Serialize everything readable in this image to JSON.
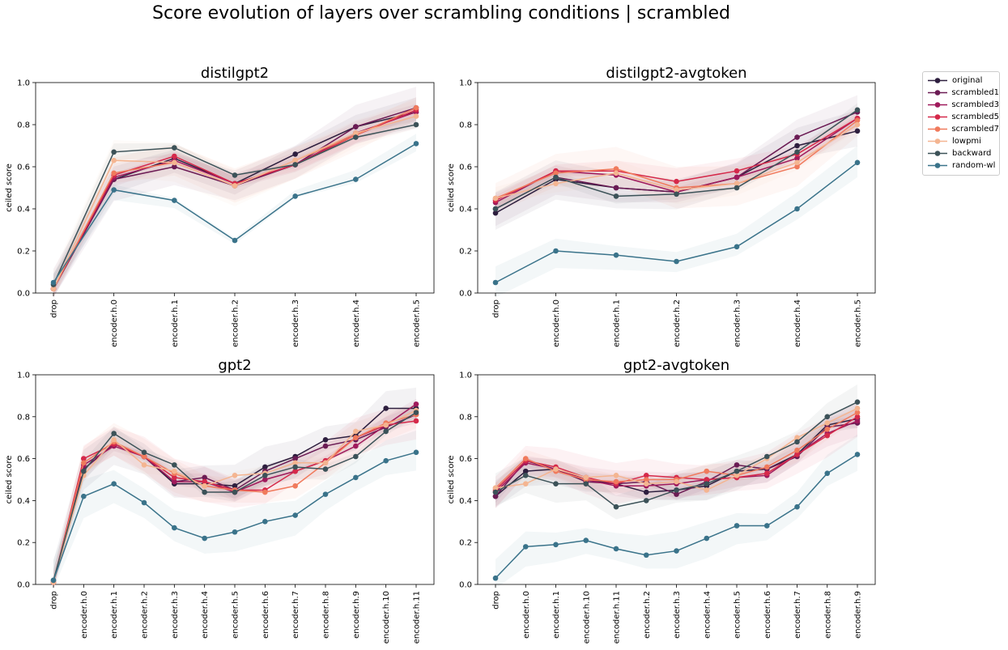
{
  "figure": {
    "title": "Score evolution of layers over scrambling conditions | scrambled"
  },
  "legend": {
    "entries": [
      {
        "name": "original",
        "color": "#2d1e3e"
      },
      {
        "name": "scrambled1",
        "color": "#6b1b54"
      },
      {
        "name": "scrambled3",
        "color": "#a01a5c"
      },
      {
        "name": "scrambled5",
        "color": "#d5294a"
      },
      {
        "name": "scrambled7",
        "color": "#f07a5c"
      },
      {
        "name": "lowpmi",
        "color": "#f4b591"
      },
      {
        "name": "backward",
        "color": "#3c5258"
      },
      {
        "name": "random-wl",
        "color": "#3a738a"
      }
    ]
  },
  "chart_data": [
    {
      "type": "line",
      "title": "distilgpt2",
      "ylabel": "ceiled score",
      "ylim": [
        0,
        1
      ],
      "yticks": [
        "0.0",
        "0.2",
        "0.4",
        "0.6",
        "0.8",
        "1.0"
      ],
      "categories": [
        "drop",
        "encoder.h.0",
        "encoder.h.1",
        "encoder.h.2",
        "encoder.h.3",
        "encoder.h.4",
        "encoder.h.5"
      ],
      "series": [
        {
          "name": "original",
          "values": [
            0.02,
            0.54,
            0.64,
            0.52,
            0.66,
            0.79,
            0.86
          ]
        },
        {
          "name": "scrambled1",
          "values": [
            0.02,
            0.54,
            0.6,
            0.51,
            0.61,
            0.79,
            0.88
          ]
        },
        {
          "name": "scrambled3",
          "values": [
            0.02,
            0.55,
            0.63,
            0.52,
            0.61,
            0.76,
            0.86
          ]
        },
        {
          "name": "scrambled5",
          "values": [
            0.02,
            0.56,
            0.65,
            0.52,
            0.61,
            0.75,
            0.87
          ]
        },
        {
          "name": "scrambled7",
          "values": [
            0.02,
            0.57,
            0.62,
            0.51,
            0.63,
            0.75,
            0.88
          ]
        },
        {
          "name": "lowpmi",
          "values": [
            0.02,
            0.63,
            0.62,
            0.51,
            0.63,
            0.76,
            0.84
          ]
        },
        {
          "name": "backward",
          "values": [
            0.04,
            0.67,
            0.69,
            0.56,
            0.61,
            0.74,
            0.8
          ]
        },
        {
          "name": "random-wl",
          "values": [
            0.05,
            0.49,
            0.44,
            0.25,
            0.46,
            0.54,
            0.71
          ]
        }
      ]
    },
    {
      "type": "line",
      "title": "distilgpt2-avgtoken",
      "ylabel": "ceiled score",
      "ylim": [
        0,
        1
      ],
      "yticks": [
        "0.0",
        "0.2",
        "0.4",
        "0.6",
        "0.8",
        "1.0"
      ],
      "categories": [
        "drop",
        "encoder.h.0",
        "encoder.h.1",
        "encoder.h.2",
        "encoder.h.3",
        "encoder.h.4",
        "encoder.h.5"
      ],
      "series": [
        {
          "name": "original",
          "values": [
            0.38,
            0.54,
            0.5,
            0.48,
            0.55,
            0.7,
            0.77
          ]
        },
        {
          "name": "scrambled1",
          "values": [
            0.4,
            0.55,
            0.5,
            0.48,
            0.55,
            0.74,
            0.86
          ]
        },
        {
          "name": "scrambled3",
          "values": [
            0.43,
            0.58,
            0.56,
            0.48,
            0.55,
            0.64,
            0.83
          ]
        },
        {
          "name": "scrambled5",
          "values": [
            0.44,
            0.58,
            0.58,
            0.53,
            0.58,
            0.66,
            0.83
          ]
        },
        {
          "name": "scrambled7",
          "values": [
            0.45,
            0.57,
            0.59,
            0.5,
            0.52,
            0.6,
            0.82
          ]
        },
        {
          "name": "lowpmi",
          "values": [
            0.45,
            0.52,
            0.57,
            0.49,
            0.52,
            0.62,
            0.8
          ]
        },
        {
          "name": "backward",
          "values": [
            0.4,
            0.55,
            0.46,
            0.47,
            0.5,
            0.67,
            0.87
          ]
        },
        {
          "name": "random-wl",
          "values": [
            0.05,
            0.2,
            0.18,
            0.15,
            0.22,
            0.4,
            0.62
          ]
        }
      ]
    },
    {
      "type": "line",
      "title": "gpt2",
      "ylabel": "ceiled score",
      "ylim": [
        0,
        1
      ],
      "yticks": [
        "0.0",
        "0.2",
        "0.4",
        "0.6",
        "0.8",
        "1.0"
      ],
      "categories": [
        "drop",
        "encoder.h.0",
        "encoder.h.1",
        "encoder.h.2",
        "encoder.h.3",
        "encoder.h.4",
        "encoder.h.5",
        "encoder.h.6",
        "encoder.h.7",
        "encoder.h.8",
        "encoder.h.9",
        "encoder.h.10",
        "encoder.h.11"
      ],
      "series": [
        {
          "name": "original",
          "values": [
            0.01,
            0.55,
            0.67,
            0.61,
            0.48,
            0.48,
            0.47,
            0.56,
            0.61,
            0.69,
            0.71,
            0.84,
            0.84
          ]
        },
        {
          "name": "scrambled1",
          "values": [
            0.01,
            0.55,
            0.67,
            0.61,
            0.49,
            0.51,
            0.45,
            0.54,
            0.6,
            0.66,
            0.69,
            0.75,
            0.81
          ]
        },
        {
          "name": "scrambled3",
          "values": [
            0.01,
            0.57,
            0.66,
            0.61,
            0.49,
            0.49,
            0.44,
            0.5,
            0.54,
            0.59,
            0.66,
            0.76,
            0.86
          ]
        },
        {
          "name": "scrambled5",
          "values": [
            0.01,
            0.6,
            0.67,
            0.61,
            0.51,
            0.49,
            0.45,
            0.45,
            0.54,
            0.59,
            0.7,
            0.76,
            0.78
          ]
        },
        {
          "name": "scrambled7",
          "values": [
            0.01,
            0.58,
            0.68,
            0.61,
            0.53,
            0.47,
            0.45,
            0.44,
            0.47,
            0.58,
            0.7,
            0.77,
            0.81
          ]
        },
        {
          "name": "lowpmi",
          "values": [
            0.01,
            0.52,
            0.69,
            0.57,
            0.54,
            0.47,
            0.52,
            0.53,
            0.58,
            0.58,
            0.73,
            0.76,
            0.83
          ]
        },
        {
          "name": "backward",
          "values": [
            0.02,
            0.54,
            0.72,
            0.63,
            0.57,
            0.44,
            0.44,
            0.52,
            0.56,
            0.55,
            0.61,
            0.73,
            0.82
          ]
        },
        {
          "name": "random-wl",
          "values": [
            0.02,
            0.42,
            0.48,
            0.39,
            0.27,
            0.22,
            0.25,
            0.3,
            0.33,
            0.43,
            0.51,
            0.59,
            0.63
          ]
        }
      ]
    },
    {
      "type": "line",
      "title": "gpt2-avgtoken",
      "ylabel": "ceiled score",
      "ylim": [
        0,
        1
      ],
      "yticks": [
        "0.0",
        "0.2",
        "0.4",
        "0.6",
        "0.8",
        "1.0"
      ],
      "categories": [
        "drop",
        "encoder.h.0",
        "encoder.h.1",
        "encoder.h.10",
        "encoder.h.11",
        "encoder.h.2",
        "encoder.h.3",
        "encoder.h.4",
        "encoder.h.5",
        "encoder.h.6",
        "encoder.h.7",
        "encoder.h.8",
        "encoder.h.9"
      ],
      "series": [
        {
          "name": "original",
          "values": [
            0.42,
            0.54,
            0.55,
            0.5,
            0.48,
            0.44,
            0.45,
            0.47,
            0.54,
            0.55,
            0.62,
            0.76,
            0.79
          ]
        },
        {
          "name": "scrambled1",
          "values": [
            0.42,
            0.59,
            0.55,
            0.49,
            0.48,
            0.49,
            0.43,
            0.49,
            0.57,
            0.55,
            0.61,
            0.75,
            0.77
          ]
        },
        {
          "name": "scrambled3",
          "values": [
            0.44,
            0.58,
            0.55,
            0.5,
            0.47,
            0.47,
            0.48,
            0.5,
            0.51,
            0.52,
            0.62,
            0.72,
            0.78
          ]
        },
        {
          "name": "scrambled5",
          "values": [
            0.45,
            0.59,
            0.56,
            0.51,
            0.48,
            0.52,
            0.51,
            0.5,
            0.51,
            0.53,
            0.62,
            0.71,
            0.8
          ]
        },
        {
          "name": "scrambled7",
          "values": [
            0.46,
            0.6,
            0.54,
            0.5,
            0.49,
            0.5,
            0.5,
            0.54,
            0.52,
            0.56,
            0.64,
            0.74,
            0.82
          ]
        },
        {
          "name": "lowpmi",
          "values": [
            0.46,
            0.48,
            0.55,
            0.51,
            0.52,
            0.48,
            0.49,
            0.45,
            0.52,
            0.6,
            0.7,
            0.77,
            0.84
          ]
        },
        {
          "name": "backward",
          "values": [
            0.44,
            0.52,
            0.48,
            0.48,
            0.37,
            0.4,
            0.45,
            0.48,
            0.54,
            0.61,
            0.68,
            0.8,
            0.87
          ]
        },
        {
          "name": "random-wl",
          "values": [
            0.03,
            0.18,
            0.19,
            0.21,
            0.17,
            0.14,
            0.16,
            0.22,
            0.28,
            0.28,
            0.37,
            0.53,
            0.62
          ]
        }
      ]
    }
  ]
}
